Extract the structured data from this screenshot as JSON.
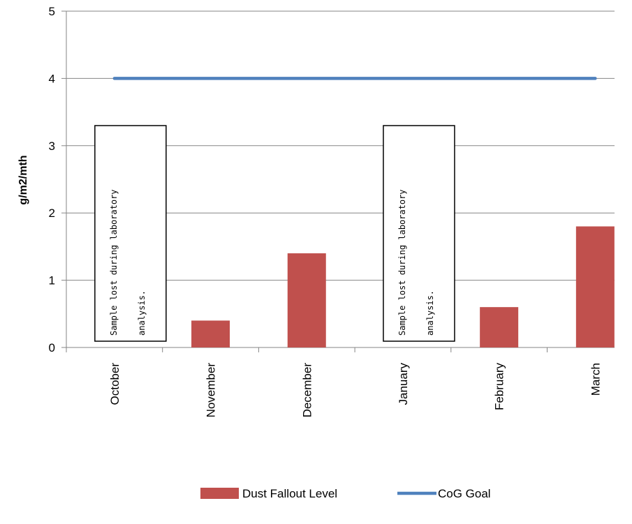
{
  "chart_data": {
    "type": "bar",
    "title": "",
    "xlabel": "",
    "ylabel": "g/m2/mth",
    "ylim": [
      0,
      5
    ],
    "yticks": [
      "0",
      "1",
      "2",
      "3",
      "4",
      "5"
    ],
    "grid": true,
    "categories": [
      "October",
      "November",
      "December",
      "January",
      "February",
      "March"
    ],
    "series": [
      {
        "name": "Dust Fallout Level",
        "type": "bar",
        "color": "#C0504D",
        "values": [
          null,
          0.4,
          1.4,
          null,
          0.6,
          1.8
        ]
      },
      {
        "name": "CoG Goal",
        "type": "line",
        "color": "#4F81BD",
        "values": [
          4,
          4,
          4,
          4,
          4,
          4
        ]
      }
    ],
    "annotations": [
      {
        "category": "October",
        "lines": [
          "Sample lost during laboratory",
          "analysis."
        ]
      },
      {
        "category": "January",
        "lines": [
          "Sample lost during laboratory",
          "analysis."
        ]
      }
    ],
    "legend_position": "bottom"
  }
}
